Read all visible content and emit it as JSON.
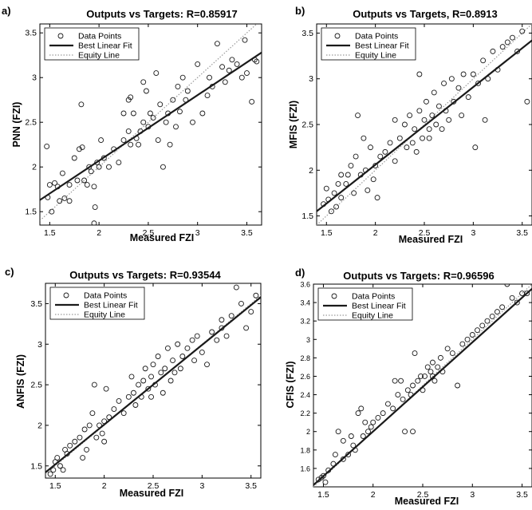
{
  "figure": {
    "colors": {
      "axis": "#000000",
      "fit_line": "#1a1a1a",
      "equity_line": "#9a9a9a",
      "markers": "#1a1a1a",
      "background": "#ffffff"
    },
    "legend": {
      "placement": "top-left",
      "items": [
        "Data Points",
        "Best Linear Fit",
        "Equity Line"
      ]
    }
  },
  "chart_data": [
    {
      "panel_label": "a)",
      "type": "scatter",
      "title": "Outputs vs Targets: R=0.85917",
      "xlabel": "Measured FZI",
      "ylabel": "PNN (FZI)",
      "xlim": [
        1.4,
        3.65
      ],
      "ylim": [
        1.35,
        3.6
      ],
      "xticks": [
        "1.5",
        "2",
        "2.5",
        "3",
        "3.5"
      ],
      "yticks": [
        "1.5",
        "2",
        "2.5",
        "3",
        "3.5"
      ],
      "legend": [
        "Data Points",
        "Best Linear Fit",
        "Equity Line"
      ],
      "fit_line": {
        "x": [
          1.4,
          3.65
        ],
        "y": [
          1.63,
          3.28
        ]
      },
      "equity_line": {
        "x": [
          1.4,
          3.65
        ],
        "y": [
          1.4,
          3.65
        ]
      },
      "points": [
        [
          1.47,
          2.23
        ],
        [
          1.48,
          1.66
        ],
        [
          1.5,
          1.8
        ],
        [
          1.52,
          1.5
        ],
        [
          1.55,
          1.82
        ],
        [
          1.58,
          1.78
        ],
        [
          1.6,
          1.62
        ],
        [
          1.63,
          1.93
        ],
        [
          1.65,
          1.65
        ],
        [
          1.7,
          1.8
        ],
        [
          1.75,
          2.1
        ],
        [
          1.78,
          1.85
        ],
        [
          1.8,
          2.2
        ],
        [
          1.82,
          2.7
        ],
        [
          1.83,
          2.22
        ],
        [
          1.85,
          1.85
        ],
        [
          1.88,
          1.8
        ],
        [
          1.9,
          2.0
        ],
        [
          1.92,
          1.95
        ],
        [
          1.95,
          1.78
        ],
        [
          1.96,
          1.55
        ],
        [
          1.98,
          2.05
        ],
        [
          2.0,
          2.0
        ],
        [
          2.02,
          2.3
        ],
        [
          2.05,
          2.1
        ],
        [
          2.1,
          2.0
        ],
        [
          2.15,
          2.2
        ],
        [
          2.2,
          2.05
        ],
        [
          2.25,
          2.3
        ],
        [
          2.3,
          2.4
        ],
        [
          2.3,
          2.75
        ],
        [
          2.32,
          2.25
        ],
        [
          2.35,
          2.6
        ],
        [
          2.38,
          2.32
        ],
        [
          2.4,
          2.25
        ],
        [
          2.42,
          2.4
        ],
        [
          2.45,
          2.5
        ],
        [
          2.48,
          2.85
        ],
        [
          2.5,
          2.45
        ],
        [
          2.52,
          2.6
        ],
        [
          2.55,
          2.55
        ],
        [
          2.58,
          3.05
        ],
        [
          2.6,
          2.3
        ],
        [
          2.62,
          2.7
        ],
        [
          2.65,
          2.0
        ],
        [
          2.68,
          2.5
        ],
        [
          2.7,
          2.6
        ],
        [
          2.72,
          2.25
        ],
        [
          2.75,
          2.75
        ],
        [
          2.78,
          2.45
        ],
        [
          2.8,
          2.9
        ],
        [
          2.82,
          2.62
        ],
        [
          2.85,
          3.0
        ],
        [
          2.88,
          2.75
        ],
        [
          2.9,
          2.85
        ],
        [
          2.95,
          2.5
        ],
        [
          3.0,
          3.15
        ],
        [
          3.05,
          2.6
        ],
        [
          3.1,
          2.8
        ],
        [
          3.12,
          3.0
        ],
        [
          3.15,
          2.9
        ],
        [
          3.2,
          3.38
        ],
        [
          3.25,
          3.12
        ],
        [
          3.28,
          2.95
        ],
        [
          3.32,
          3.08
        ],
        [
          3.35,
          3.2
        ],
        [
          3.4,
          3.15
        ],
        [
          3.45,
          3.0
        ],
        [
          3.5,
          3.05
        ],
        [
          3.55,
          2.73
        ],
        [
          3.58,
          3.2
        ],
        [
          3.6,
          3.18
        ],
        [
          1.95,
          1.37
        ],
        [
          2.25,
          2.6
        ],
        [
          2.45,
          2.95
        ],
        [
          1.7,
          1.62
        ],
        [
          3.48,
          3.42
        ],
        [
          2.32,
          2.78
        ]
      ]
    },
    {
      "panel_label": "b)",
      "type": "scatter",
      "title": "Outputs vs Targets, R=0.8913",
      "xlabel": "Measured FZI",
      "ylabel": "MFIS (FZI)",
      "xlim": [
        1.4,
        3.6
      ],
      "ylim": [
        1.4,
        3.6
      ],
      "xticks": [
        "1.5",
        "2",
        "2.5",
        "3",
        "3.5"
      ],
      "yticks": [
        "1.5",
        "2",
        "2.5",
        "3",
        "3.5"
      ],
      "legend": [
        "Data Points",
        "Best Linear Fit",
        "Equity Line"
      ],
      "fit_line": {
        "x": [
          1.4,
          3.6
        ],
        "y": [
          1.55,
          3.42
        ]
      },
      "equity_line": {
        "x": [
          1.4,
          3.6
        ],
        "y": [
          1.4,
          3.6
        ]
      },
      "points": [
        [
          1.47,
          1.63
        ],
        [
          1.5,
          1.8
        ],
        [
          1.52,
          1.68
        ],
        [
          1.55,
          1.55
        ],
        [
          1.58,
          1.75
        ],
        [
          1.6,
          1.6
        ],
        [
          1.62,
          1.85
        ],
        [
          1.65,
          1.7
        ],
        [
          1.7,
          1.85
        ],
        [
          1.72,
          1.95
        ],
        [
          1.75,
          2.05
        ],
        [
          1.78,
          1.75
        ],
        [
          1.8,
          2.15
        ],
        [
          1.82,
          2.6
        ],
        [
          1.85,
          1.95
        ],
        [
          1.88,
          2.35
        ],
        [
          1.9,
          2.0
        ],
        [
          1.92,
          1.78
        ],
        [
          1.95,
          2.25
        ],
        [
          1.98,
          1.9
        ],
        [
          2.0,
          2.05
        ],
        [
          2.02,
          1.7
        ],
        [
          2.05,
          2.15
        ],
        [
          2.1,
          2.2
        ],
        [
          2.15,
          2.3
        ],
        [
          2.2,
          2.1
        ],
        [
          2.25,
          2.35
        ],
        [
          2.3,
          2.5
        ],
        [
          2.32,
          2.25
        ],
        [
          2.35,
          2.6
        ],
        [
          2.38,
          2.3
        ],
        [
          2.4,
          2.45
        ],
        [
          2.42,
          2.2
        ],
        [
          2.45,
          2.65
        ],
        [
          2.48,
          2.35
        ],
        [
          2.5,
          2.55
        ],
        [
          2.52,
          2.75
        ],
        [
          2.55,
          2.45
        ],
        [
          2.58,
          2.6
        ],
        [
          2.6,
          2.85
        ],
        [
          2.62,
          2.5
        ],
        [
          2.65,
          2.7
        ],
        [
          2.68,
          2.45
        ],
        [
          2.7,
          2.95
        ],
        [
          2.72,
          2.65
        ],
        [
          2.75,
          2.55
        ],
        [
          2.78,
          3.0
        ],
        [
          2.8,
          2.75
        ],
        [
          2.85,
          2.9
        ],
        [
          2.88,
          2.6
        ],
        [
          2.9,
          3.05
        ],
        [
          2.95,
          2.8
        ],
        [
          3.0,
          3.05
        ],
        [
          3.02,
          2.25
        ],
        [
          3.05,
          2.95
        ],
        [
          3.1,
          3.2
        ],
        [
          3.15,
          3.0
        ],
        [
          3.2,
          3.3
        ],
        [
          3.25,
          3.1
        ],
        [
          3.3,
          3.35
        ],
        [
          3.35,
          3.4
        ],
        [
          3.4,
          3.45
        ],
        [
          3.45,
          3.3
        ],
        [
          3.5,
          3.52
        ],
        [
          3.55,
          2.75
        ],
        [
          2.45,
          3.05
        ],
        [
          2.55,
          2.35
        ],
        [
          3.12,
          2.55
        ],
        [
          2.2,
          2.55
        ],
        [
          1.65,
          1.95
        ]
      ]
    },
    {
      "panel_label": "c)",
      "type": "scatter",
      "title": "Outputs vs Targets: R=0.93544",
      "xlabel": "Measured FZI",
      "ylabel": "ANFIS (FZI)",
      "xlim": [
        1.4,
        3.6
      ],
      "ylim": [
        1.35,
        3.75
      ],
      "xticks": [
        "1.5",
        "2",
        "2.5",
        "3",
        "3.5"
      ],
      "yticks": [
        "1.5",
        "2",
        "2.5",
        "3",
        "3.5"
      ],
      "legend": [
        "Data Points",
        "Best Linear Fit",
        "Equity Line"
      ],
      "fit_line": {
        "x": [
          1.4,
          3.6
        ],
        "y": [
          1.42,
          3.58
        ]
      },
      "equity_line": {
        "x": [
          1.4,
          3.6
        ],
        "y": [
          1.4,
          3.6
        ]
      },
      "points": [
        [
          1.45,
          1.4
        ],
        [
          1.48,
          1.45
        ],
        [
          1.5,
          1.55
        ],
        [
          1.52,
          1.6
        ],
        [
          1.55,
          1.5
        ],
        [
          1.6,
          1.7
        ],
        [
          1.62,
          1.65
        ],
        [
          1.65,
          1.75
        ],
        [
          1.7,
          1.8
        ],
        [
          1.75,
          1.85
        ],
        [
          1.78,
          1.6
        ],
        [
          1.8,
          1.95
        ],
        [
          1.82,
          1.7
        ],
        [
          1.85,
          2.0
        ],
        [
          1.88,
          2.15
        ],
        [
          1.9,
          2.5
        ],
        [
          1.92,
          1.85
        ],
        [
          1.95,
          2.0
        ],
        [
          1.98,
          1.9
        ],
        [
          2.0,
          2.05
        ],
        [
          2.02,
          2.45
        ],
        [
          2.05,
          2.1
        ],
        [
          2.1,
          2.2
        ],
        [
          2.15,
          2.3
        ],
        [
          2.2,
          2.15
        ],
        [
          2.25,
          2.35
        ],
        [
          2.28,
          2.6
        ],
        [
          2.3,
          2.4
        ],
        [
          2.32,
          2.25
        ],
        [
          2.35,
          2.5
        ],
        [
          2.38,
          2.35
        ],
        [
          2.4,
          2.55
        ],
        [
          2.42,
          2.7
        ],
        [
          2.45,
          2.45
        ],
        [
          2.48,
          2.6
        ],
        [
          2.5,
          2.75
        ],
        [
          2.52,
          2.5
        ],
        [
          2.55,
          2.85
        ],
        [
          2.58,
          2.65
        ],
        [
          2.6,
          2.4
        ],
        [
          2.62,
          2.7
        ],
        [
          2.65,
          2.95
        ],
        [
          2.68,
          2.55
        ],
        [
          2.7,
          2.8
        ],
        [
          2.72,
          2.65
        ],
        [
          2.75,
          3.0
        ],
        [
          2.78,
          2.7
        ],
        [
          2.8,
          2.85
        ],
        [
          2.85,
          2.95
        ],
        [
          2.9,
          3.05
        ],
        [
          2.92,
          2.8
        ],
        [
          2.95,
          3.1
        ],
        [
          3.0,
          2.9
        ],
        [
          3.05,
          2.75
        ],
        [
          3.1,
          3.15
        ],
        [
          3.15,
          3.05
        ],
        [
          3.2,
          3.3
        ],
        [
          3.25,
          3.1
        ],
        [
          3.3,
          3.35
        ],
        [
          3.35,
          3.7
        ],
        [
          3.4,
          3.5
        ],
        [
          3.45,
          3.2
        ],
        [
          3.5,
          3.4
        ],
        [
          3.55,
          3.6
        ],
        [
          1.58,
          1.45
        ],
        [
          2.0,
          1.8
        ],
        [
          2.48,
          2.35
        ],
        [
          3.2,
          3.2
        ]
      ]
    },
    {
      "panel_label": "d)",
      "type": "scatter",
      "title": "Outputs vs Targets: R=0.96596",
      "xlabel": "Measured FZI",
      "ylabel": "CFIS (FZI)",
      "xlim": [
        1.4,
        3.6
      ],
      "ylim": [
        1.4,
        3.6
      ],
      "xticks": [
        "1.5",
        "2",
        "2.5",
        "3",
        "3.5"
      ],
      "yticks": [
        "1.6",
        "1.8",
        "2",
        "2.2",
        "2.4",
        "2.6",
        "2.8",
        "3",
        "3.2",
        "3.4",
        "3.6"
      ],
      "legend": [
        "Data Points",
        "Best Linear Fit",
        "Equity Line"
      ],
      "fit_line": {
        "x": [
          1.4,
          3.6
        ],
        "y": [
          1.42,
          3.55
        ]
      },
      "equity_line": {
        "x": [
          1.4,
          3.6
        ],
        "y": [
          1.4,
          3.6
        ]
      },
      "points": [
        [
          1.45,
          1.48
        ],
        [
          1.48,
          1.5
        ],
        [
          1.5,
          1.52
        ],
        [
          1.52,
          1.45
        ],
        [
          1.55,
          1.58
        ],
        [
          1.6,
          1.65
        ],
        [
          1.62,
          1.75
        ],
        [
          1.65,
          2.0
        ],
        [
          1.7,
          1.7
        ],
        [
          1.75,
          1.75
        ],
        [
          1.78,
          1.95
        ],
        [
          1.8,
          1.85
        ],
        [
          1.82,
          1.8
        ],
        [
          1.85,
          2.2
        ],
        [
          1.88,
          2.25
        ],
        [
          1.9,
          1.95
        ],
        [
          1.92,
          2.1
        ],
        [
          1.95,
          2.0
        ],
        [
          1.98,
          2.05
        ],
        [
          2.0,
          2.1
        ],
        [
          2.05,
          2.15
        ],
        [
          2.1,
          2.2
        ],
        [
          2.15,
          2.3
        ],
        [
          2.2,
          2.25
        ],
        [
          2.25,
          2.4
        ],
        [
          2.28,
          2.55
        ],
        [
          2.3,
          2.35
        ],
        [
          2.32,
          2.0
        ],
        [
          2.35,
          2.45
        ],
        [
          2.38,
          2.4
        ],
        [
          2.4,
          2.5
        ],
        [
          2.42,
          2.85
        ],
        [
          2.45,
          2.55
        ],
        [
          2.48,
          2.6
        ],
        [
          2.5,
          2.45
        ],
        [
          2.52,
          2.6
        ],
        [
          2.55,
          2.7
        ],
        [
          2.58,
          2.65
        ],
        [
          2.6,
          2.75
        ],
        [
          2.62,
          2.55
        ],
        [
          2.65,
          2.7
        ],
        [
          2.68,
          2.8
        ],
        [
          2.7,
          2.65
        ],
        [
          2.75,
          2.9
        ],
        [
          2.8,
          2.85
        ],
        [
          2.85,
          2.5
        ],
        [
          2.9,
          2.95
        ],
        [
          2.95,
          3.0
        ],
        [
          3.0,
          3.05
        ],
        [
          3.05,
          3.1
        ],
        [
          3.1,
          3.15
        ],
        [
          3.15,
          3.2
        ],
        [
          3.2,
          3.25
        ],
        [
          3.25,
          3.3
        ],
        [
          3.3,
          3.35
        ],
        [
          3.35,
          3.6
        ],
        [
          3.4,
          3.45
        ],
        [
          3.45,
          3.4
        ],
        [
          3.5,
          3.5
        ],
        [
          3.55,
          3.5
        ],
        [
          2.22,
          2.55
        ],
        [
          2.4,
          2.0
        ],
        [
          1.7,
          1.9
        ],
        [
          2.6,
          2.6
        ]
      ]
    }
  ]
}
